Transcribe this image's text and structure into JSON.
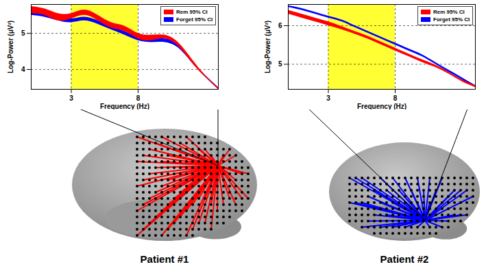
{
  "chart_data": [
    {
      "type": "area",
      "title": "Patient #1",
      "x_label": "Frequency (Hz)",
      "y_label": "Log-Power (μV²)",
      "x": [
        0,
        1,
        2,
        3,
        4,
        5,
        6,
        7,
        8,
        9,
        10,
        11,
        12,
        13,
        14
      ],
      "series": [
        {
          "name": "Rem 95% CI",
          "color": "#ff0000",
          "lower": [
            5.55,
            5.5,
            5.35,
            5.4,
            5.5,
            5.35,
            5.15,
            5.05,
            4.85,
            4.8,
            4.85,
            4.65,
            4.2,
            3.8,
            3.45
          ],
          "upper": [
            5.75,
            5.68,
            5.55,
            5.55,
            5.65,
            5.5,
            5.3,
            5.2,
            5.0,
            4.95,
            4.95,
            4.75,
            4.3,
            3.85,
            3.5
          ]
        },
        {
          "name": "Forget 95% CI",
          "color": "#0000ff",
          "lower": [
            5.5,
            5.45,
            5.35,
            5.3,
            5.35,
            5.25,
            5.1,
            4.95,
            4.8,
            4.75,
            4.75,
            4.6,
            4.2,
            3.8,
            3.45
          ],
          "upper": [
            5.6,
            5.55,
            5.45,
            5.4,
            5.45,
            5.35,
            5.2,
            5.05,
            4.9,
            4.85,
            4.85,
            4.7,
            4.25,
            3.85,
            3.5
          ]
        }
      ],
      "shaded_range": [
        3,
        8
      ],
      "xlim": [
        0,
        14
      ],
      "ylim": [
        3.45,
        5.8
      ],
      "xticks": [
        3,
        8
      ],
      "yticks": [
        4,
        5
      ],
      "grid": true,
      "legend": "top-right"
    },
    {
      "type": "area",
      "title": "Patient #2",
      "x_label": "Frequency (Hz)",
      "y_label": "Log-Power (μV²)",
      "x": [
        0,
        1,
        2,
        3,
        4,
        5,
        6,
        7,
        8,
        9,
        10,
        11,
        12,
        13,
        14
      ],
      "series": [
        {
          "name": "Rem 95% CI",
          "color": "#ff0000",
          "lower": [
            6.3,
            6.2,
            6.1,
            6.0,
            5.9,
            5.78,
            5.65,
            5.5,
            5.35,
            5.2,
            5.05,
            4.92,
            4.75,
            4.55,
            4.4
          ],
          "upper": [
            6.4,
            6.3,
            6.2,
            6.1,
            5.98,
            5.85,
            5.72,
            5.57,
            5.42,
            5.27,
            5.12,
            4.98,
            4.8,
            4.6,
            4.45
          ]
        },
        {
          "name": "Forget 95% CI",
          "color": "#0000ff",
          "lower": [
            6.48,
            6.4,
            6.3,
            6.2,
            6.1,
            5.95,
            5.8,
            5.65,
            5.5,
            5.35,
            5.2,
            5.0,
            4.8,
            4.6,
            4.4
          ],
          "upper": [
            6.52,
            6.45,
            6.35,
            6.25,
            6.15,
            6.0,
            5.85,
            5.7,
            5.55,
            5.4,
            5.25,
            5.05,
            4.85,
            4.65,
            4.45
          ]
        }
      ],
      "shaded_range": [
        3,
        8
      ],
      "xlim": [
        0,
        14
      ],
      "ylim": [
        4.35,
        6.55
      ],
      "xticks": [
        3,
        8
      ],
      "yticks": [
        5,
        6
      ],
      "grid": true,
      "legend": "top-right"
    }
  ]
}
